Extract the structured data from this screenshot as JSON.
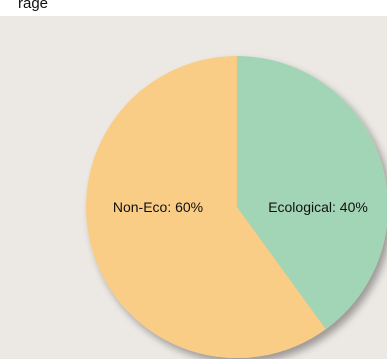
{
  "top_text": "rage",
  "chart_data": {
    "type": "pie",
    "title": "",
    "start_angle_deg": 0,
    "slices": [
      {
        "label": "Ecological",
        "value": 40,
        "color": "#a2d5b5"
      },
      {
        "label": "Non-Eco",
        "value": 60,
        "color": "#f9cd86"
      }
    ],
    "labels": [
      "Ecological:  40%",
      "Non-Eco:  60%"
    ],
    "shadow": true
  }
}
